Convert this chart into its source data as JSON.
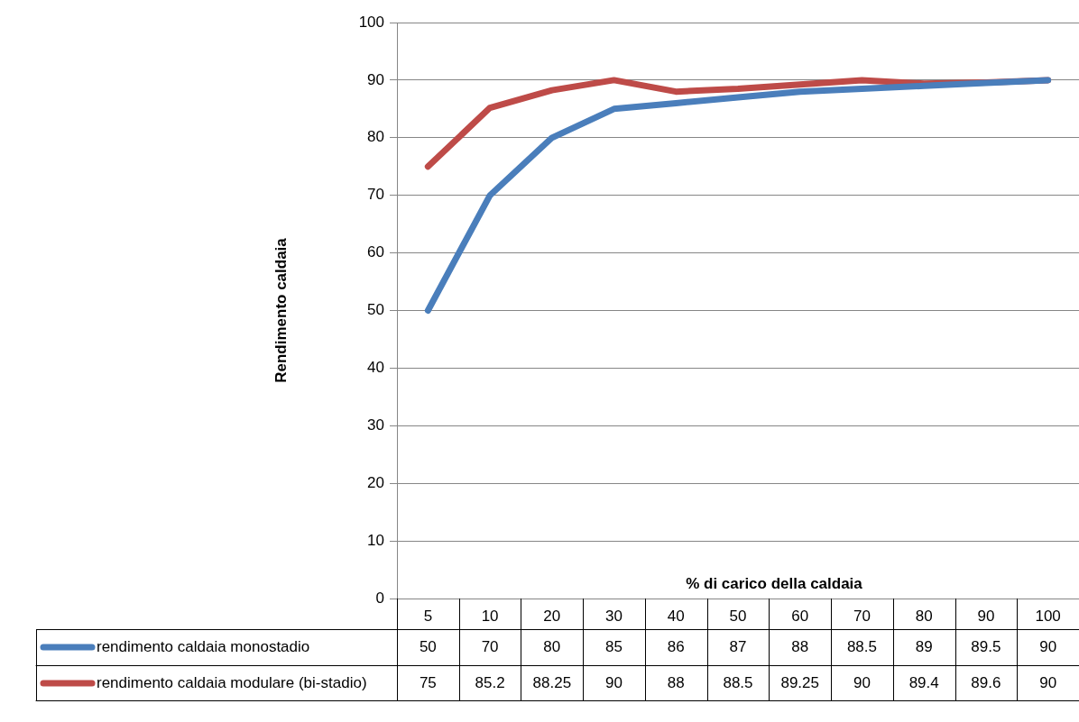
{
  "chart_data": {
    "type": "line",
    "xlabel": "% di carico della caldaia",
    "ylabel": "Rendimento caldaia",
    "categories": [
      "5",
      "10",
      "20",
      "30",
      "40",
      "50",
      "60",
      "70",
      "80",
      "90",
      "100"
    ],
    "series": [
      {
        "name": "rendimento caldaia monostadio",
        "color": "#4a7ebb",
        "values": [
          50,
          70,
          80,
          85,
          86,
          87,
          88,
          88.5,
          89,
          89.5,
          90
        ]
      },
      {
        "name": "rendimento caldaia modulare (bi-stadio)",
        "color": "#be4b48",
        "values": [
          75,
          85.2,
          88.25,
          90,
          88,
          88.5,
          89.25,
          90,
          89.4,
          89.6,
          90
        ]
      }
    ],
    "ylim": [
      0,
      100
    ],
    "yticks": [
      0,
      10,
      20,
      30,
      40,
      50,
      60,
      70,
      80,
      90,
      100
    ],
    "grid": "y",
    "legend": "bottom",
    "data_labels": true,
    "marker": "none",
    "line_style": "solid"
  }
}
